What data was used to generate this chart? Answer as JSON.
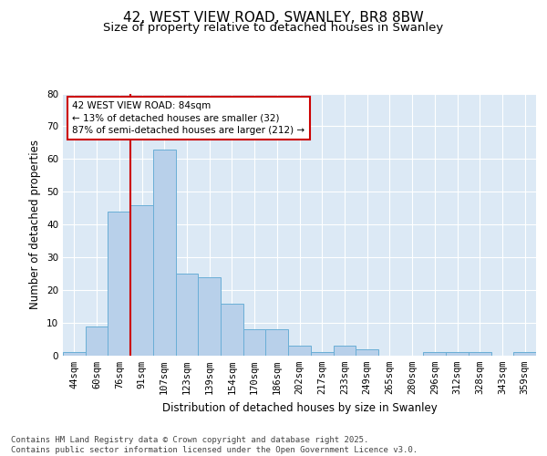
{
  "title1": "42, WEST VIEW ROAD, SWANLEY, BR8 8BW",
  "title2": "Size of property relative to detached houses in Swanley",
  "xlabel": "Distribution of detached houses by size in Swanley",
  "ylabel": "Number of detached properties",
  "bin_labels": [
    "44sqm",
    "60sqm",
    "76sqm",
    "91sqm",
    "107sqm",
    "123sqm",
    "139sqm",
    "154sqm",
    "170sqm",
    "186sqm",
    "202sqm",
    "217sqm",
    "233sqm",
    "249sqm",
    "265sqm",
    "280sqm",
    "296sqm",
    "312sqm",
    "328sqm",
    "343sqm",
    "359sqm"
  ],
  "bar_values": [
    1,
    9,
    44,
    46,
    63,
    25,
    24,
    16,
    8,
    8,
    3,
    1,
    3,
    2,
    0,
    0,
    1,
    1,
    1,
    0,
    1
  ],
  "bar_color": "#b8d0ea",
  "bar_edge_color": "#6aaed6",
  "bg_color": "#dce9f5",
  "grid_color": "#ffffff",
  "vline_color": "#cc0000",
  "annotation_box_color": "#cc0000",
  "ylim": [
    0,
    80
  ],
  "yticks": [
    0,
    10,
    20,
    30,
    40,
    50,
    60,
    70,
    80
  ],
  "title_fontsize": 11,
  "subtitle_fontsize": 9.5,
  "axis_label_fontsize": 8.5,
  "tick_fontsize": 7.5,
  "annotation_fontsize": 7.5,
  "footer_fontsize": 6.5,
  "footer": "Contains HM Land Registry data © Crown copyright and database right 2025.\nContains public sector information licensed under the Open Government Licence v3.0.",
  "annotation_text": "42 WEST VIEW ROAD: 84sqm\n← 13% of detached houses are smaller (32)\n87% of semi-detached houses are larger (212) →"
}
